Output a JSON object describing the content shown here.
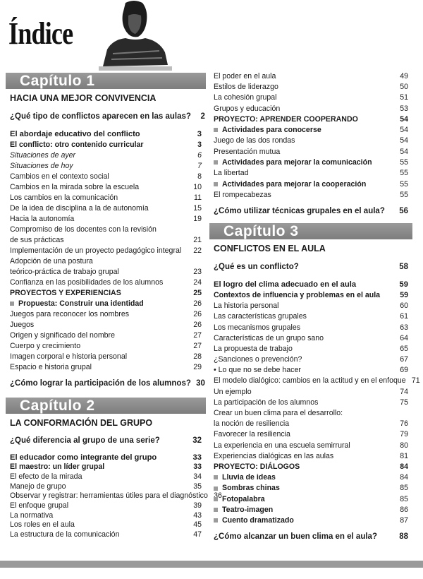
{
  "page": {
    "title": "Índice"
  },
  "left": [
    {
      "chapter": "Capítulo 1",
      "subtitle": "HACIA UNA MEJOR CONVIVENCIA",
      "rh": 15,
      "items": [
        {
          "t": "¿Qué tipo de conflictos aparecen en las aulas?",
          "p": "2",
          "s": "q"
        },
        {
          "t": "El abordaje educativo del conflicto",
          "p": "3",
          "s": "b"
        },
        {
          "t": "El conflicto: otro contenido curricular",
          "p": "3",
          "s": "m"
        },
        {
          "t": "Situaciones de ayer",
          "p": "6",
          "s": "i"
        },
        {
          "t": "Situaciones de hoy",
          "p": "7",
          "s": "i"
        },
        {
          "t": "Cambios en el contexto social",
          "p": "8",
          "s": "n"
        },
        {
          "t": "Cambios en la mirada sobre la escuela",
          "p": "10",
          "s": "n"
        },
        {
          "t": "Los cambios en la comunicación",
          "p": "11",
          "s": "n"
        },
        {
          "t": "De la idea de disciplina a la de autonomía",
          "p": "15",
          "s": "n"
        },
        {
          "t": "Hacia la autonomía",
          "p": "19",
          "s": "n"
        },
        {
          "t": "Compromiso de los docentes con la revisión",
          "p": "",
          "s": "n"
        },
        {
          "t": "de sus prácticas",
          "p": "21",
          "s": "n"
        },
        {
          "t": "Implementación de un proyecto pedagógico integral",
          "p": "22",
          "s": "n"
        },
        {
          "t": "Adopción de una postura",
          "p": "",
          "s": "n"
        },
        {
          "t": "teórico-práctica de trabajo grupal",
          "p": "23",
          "s": "n"
        },
        {
          "t": "Confianza en las posibilidades de los alumnos",
          "p": "24",
          "s": "n"
        },
        {
          "t": "PROYECTOS Y EXPERIENCIAS",
          "p": "25",
          "s": "h"
        },
        {
          "t": "Propuesta: Construir una identidad",
          "p": "26",
          "s": "sq"
        },
        {
          "t": "Juegos para reconocer los nombres",
          "p": "26",
          "s": "n"
        },
        {
          "t": "Juegos",
          "p": "26",
          "s": "n"
        },
        {
          "t": "Origen y significado del nombre",
          "p": "27",
          "s": "n"
        },
        {
          "t": "Cuerpo y crecimiento",
          "p": "27",
          "s": "n"
        },
        {
          "t": "Imagen corporal e historia personal",
          "p": "28",
          "s": "n"
        },
        {
          "t": "Espacio e historia grupal",
          "p": "29",
          "s": "n"
        },
        {
          "t": "¿Cómo lograr la participación de los alumnos?",
          "p": "30",
          "s": "q"
        }
      ]
    },
    {
      "chapter": "Capítulo 2",
      "subtitle": "LA CONFORMACIÓN DEL GRUPO",
      "rh": 13.7,
      "items": [
        {
          "t": "¿Qué diferencia al grupo de una serie?",
          "p": "32",
          "s": "q"
        },
        {
          "t": "El educador como integrante del grupo",
          "p": "33",
          "s": "b"
        },
        {
          "t": "El maestro: un líder grupal",
          "p": "33",
          "s": "m"
        },
        {
          "t": "El efecto de la mirada",
          "p": "34",
          "s": "n"
        },
        {
          "t": "Manejo de grupo",
          "p": "35",
          "s": "n"
        },
        {
          "t": "Observar y registrar: herramientas útiles para el diagnóstico",
          "p": "36",
          "s": "n"
        },
        {
          "t": "El enfoque grupal",
          "p": "39",
          "s": "n"
        },
        {
          "t": "La normativa",
          "p": "43",
          "s": "n"
        },
        {
          "t": "Los roles en el aula",
          "p": "45",
          "s": "n"
        },
        {
          "t": "La estructura de la comunicación",
          "p": "47",
          "s": "n"
        }
      ]
    }
  ],
  "right": [
    {
      "chapter": "",
      "subtitle": "",
      "rh": 15.3,
      "items": [
        {
          "t": "El poder en el aula",
          "p": "49",
          "s": "n"
        },
        {
          "t": "Estilos de liderazgo",
          "p": "50",
          "s": "n"
        },
        {
          "t": "La cohesión grupal",
          "p": "51",
          "s": "n"
        },
        {
          "t": "Grupos y educación",
          "p": "53",
          "s": "n"
        },
        {
          "t": "PROYECTO: APRENDER COOPERANDO",
          "p": "54",
          "s": "h"
        },
        {
          "t": "Actividades para conocerse",
          "p": "54",
          "s": "sq"
        },
        {
          "t": "Juego de las dos rondas",
          "p": "54",
          "s": "n"
        },
        {
          "t": "Presentación mutua",
          "p": "54",
          "s": "n"
        },
        {
          "t": "Actividades para mejorar la comunicación",
          "p": "55",
          "s": "sq"
        },
        {
          "t": "La libertad",
          "p": "55",
          "s": "n"
        },
        {
          "t": "Actividades para mejorar la cooperación",
          "p": "55",
          "s": "sq"
        },
        {
          "t": "El rompecabezas",
          "p": "55",
          "s": "n"
        },
        {
          "t": "¿Cómo utilizar técnicas grupales en el aula?",
          "p": "56",
          "s": "q"
        }
      ]
    },
    {
      "chapter": "Capítulo 3",
      "subtitle": "CONFLICTOS EN EL AULA",
      "rh": 15.2,
      "items": [
        {
          "t": "¿Qué es un conflicto?",
          "p": "58",
          "s": "q"
        },
        {
          "t": "El logro del clima adecuado en el aula",
          "p": "59",
          "s": "b"
        },
        {
          "t": "Contextos de influencia y problemas en el aula",
          "p": "59",
          "s": "m"
        },
        {
          "t": "La historia personal",
          "p": "60",
          "s": "n"
        },
        {
          "t": "Las características grupales",
          "p": "61",
          "s": "n"
        },
        {
          "t": "Los mecanismos grupales",
          "p": "63",
          "s": "n"
        },
        {
          "t": "Características de un grupo sano",
          "p": "64",
          "s": "n"
        },
        {
          "t": "La propuesta de trabajo",
          "p": "65",
          "s": "n"
        },
        {
          "t": "¿Sanciones o prevención?",
          "p": "67",
          "s": "n"
        },
        {
          "t": "• Lo que no se debe hacer",
          "p": "69",
          "s": "n"
        },
        {
          "t": "El modelo dialógico: cambios en la actitud y en el enfoque",
          "p": "71",
          "s": "n"
        },
        {
          "t": "Un ejemplo",
          "p": "74",
          "s": "n"
        },
        {
          "t": "La participación de los alumnos",
          "p": "75",
          "s": "n"
        },
        {
          "t": "Crear un buen clima para el desarrollo:",
          "p": "",
          "s": "n"
        },
        {
          "t": "la noción de resiliencia",
          "p": "76",
          "s": "n"
        },
        {
          "t": "Favorecer la resiliencia",
          "p": "79",
          "s": "n"
        },
        {
          "t": "La experiencia en una escuela semirrural",
          "p": "80",
          "s": "n"
        },
        {
          "t": "Experiencias dialógicas en las aulas",
          "p": "81",
          "s": "n"
        },
        {
          "t": "PROYECTO: DIÁLOGOS",
          "p": "84",
          "s": "h"
        },
        {
          "t": "Lluvia de ideas",
          "p": "84",
          "s": "sq"
        },
        {
          "t": "Sombras chinas",
          "p": "85",
          "s": "sq"
        },
        {
          "t": "Fotopalabra",
          "p": "85",
          "s": "sq"
        },
        {
          "t": "Teatro-imagen",
          "p": "86",
          "s": "sq"
        },
        {
          "t": "Cuento dramatizado",
          "p": "87",
          "s": "sq"
        },
        {
          "t": "¿Cómo alcanzar un buen clima en el aula?",
          "p": "88",
          "s": "q"
        }
      ]
    }
  ]
}
